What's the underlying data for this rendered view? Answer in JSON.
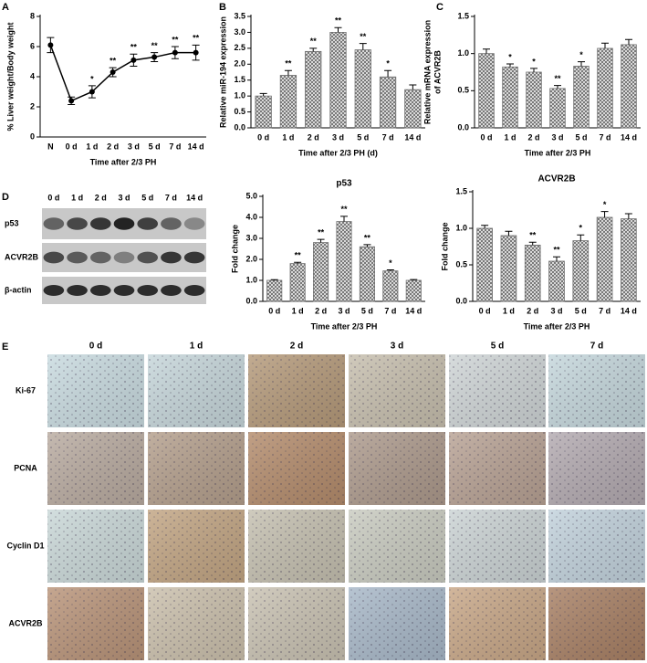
{
  "panel_labels": [
    "A",
    "B",
    "C",
    "D",
    "E"
  ],
  "chart_data": [
    {
      "type": "line",
      "categories": [
        "N",
        "0 d",
        "1 d",
        "2 d",
        "3 d",
        "5 d",
        "7 d",
        "14 d"
      ],
      "values": [
        6.1,
        2.4,
        3.0,
        4.3,
        5.1,
        5.3,
        5.6,
        5.6
      ],
      "errors": [
        0.5,
        0.25,
        0.4,
        0.3,
        0.4,
        0.3,
        0.4,
        0.5
      ],
      "significance": [
        null,
        null,
        "*",
        "**",
        "**",
        "**",
        "**",
        "**"
      ],
      "color": "#000000",
      "ylabel": [
        "% Liver weight/Body weight"
      ],
      "xlabel": "Time after 2/3 PH",
      "ylim": [
        0,
        8
      ],
      "yticks": [
        0,
        2,
        4,
        6,
        8
      ]
    },
    {
      "type": "bar",
      "categories": [
        "0 d",
        "1 d",
        "2 d",
        "3 d",
        "5 d",
        "7 d",
        "14 d"
      ],
      "values": [
        1.0,
        1.65,
        2.4,
        3.0,
        2.45,
        1.6,
        1.2
      ],
      "errors": [
        0.08,
        0.15,
        0.1,
        0.15,
        0.2,
        0.2,
        0.15
      ],
      "significance": [
        null,
        "**",
        "**",
        "**",
        "**",
        "*",
        null
      ],
      "color": "#6e6e6e",
      "ylabel": [
        "Relative miR-194 expression"
      ],
      "xlabel": "Time after 2/3 PH (d)",
      "ylim": [
        0,
        3.5
      ],
      "yticks": [
        {
          "value": 0,
          "label": "0.0"
        },
        {
          "value": 0.5,
          "label": "0.5"
        },
        {
          "value": 1,
          "label": "1.0"
        },
        {
          "value": 1.5,
          "label": "1.5"
        },
        {
          "value": 2,
          "label": "2.0"
        },
        {
          "value": 2.5,
          "label": "2.5"
        },
        {
          "value": 3,
          "label": "3.0"
        },
        {
          "value": 3.5,
          "label": "3.5"
        }
      ]
    },
    {
      "type": "bar",
      "categories": [
        "0 d",
        "1 d",
        "2 d",
        "3 d",
        "5 d",
        "7 d",
        "14 d"
      ],
      "values": [
        1.0,
        0.82,
        0.75,
        0.53,
        0.83,
        1.07,
        1.12
      ],
      "errors": [
        0.06,
        0.04,
        0.05,
        0.04,
        0.06,
        0.07,
        0.07
      ],
      "significance": [
        null,
        "*",
        "*",
        "**",
        "*",
        null,
        null
      ],
      "color": "#6e6e6e",
      "ylabel": [
        "Relative mRNA expression",
        "of ACVR2B"
      ],
      "xlabel": "Time after 2/3 PH",
      "ylim": [
        0,
        1.5
      ],
      "yticks": [
        {
          "value": 0,
          "label": "0.0"
        },
        {
          "value": 0.5,
          "label": "0.5"
        },
        {
          "value": 1,
          "label": "1.0"
        },
        {
          "value": 1.5,
          "label": "1.5"
        }
      ]
    },
    {
      "type": "bar",
      "title": "p53",
      "categories": [
        "0 d",
        "1 d",
        "2 d",
        "3 d",
        "5 d",
        "7 d",
        "14 d"
      ],
      "values": [
        1.0,
        1.8,
        2.8,
        3.8,
        2.6,
        1.45,
        1.0
      ],
      "errors": [
        0.03,
        0.06,
        0.15,
        0.25,
        0.1,
        0.05,
        0.04
      ],
      "significance": [
        null,
        "**",
        "**",
        "**",
        "**",
        "*",
        null
      ],
      "color": "#6e6e6e",
      "ylabel": [
        "Fold change"
      ],
      "xlabel": "Time after 2/3 PH",
      "ylim": [
        0,
        5
      ],
      "yticks": [
        {
          "value": 0,
          "label": "0.0"
        },
        {
          "value": 1,
          "label": "1.0"
        },
        {
          "value": 2,
          "label": "2.0"
        },
        {
          "value": 3,
          "label": "3.0"
        },
        {
          "value": 4,
          "label": "4.0"
        },
        {
          "value": 5,
          "label": "5.0"
        }
      ]
    },
    {
      "type": "bar",
      "title": "ACVR2B",
      "categories": [
        "0 d",
        "1 d",
        "2 d",
        "3 d",
        "5 d",
        "7 d",
        "14 d"
      ],
      "values": [
        1.0,
        0.9,
        0.77,
        0.55,
        0.83,
        1.15,
        1.13
      ],
      "errors": [
        0.04,
        0.06,
        0.04,
        0.06,
        0.08,
        0.08,
        0.07
      ],
      "significance": [
        null,
        null,
        "**",
        "**",
        "*",
        "*",
        null
      ],
      "color": "#6e6e6e",
      "ylabel": [
        "Fold change"
      ],
      "xlabel": "Time after 2/3 PH",
      "ylim": [
        0,
        1.5
      ],
      "yticks": [
        {
          "value": 0,
          "label": "0.0"
        },
        {
          "value": 0.5,
          "label": "0.5"
        },
        {
          "value": 1,
          "label": "1.0"
        },
        {
          "value": 1.5,
          "label": "1.5"
        }
      ]
    }
  ],
  "blot": {
    "lanes": [
      "0 d",
      "1 d",
      "2 d",
      "3 d",
      "5 d",
      "7 d",
      "14 d"
    ],
    "rows": [
      "p53",
      "ACVR2B",
      "β-actin"
    ]
  },
  "ihc": {
    "columns": [
      "0 d",
      "1 d",
      "2 d",
      "3 d",
      "5 d",
      "7 d"
    ],
    "rows": [
      "Ki-67",
      "PCNA",
      "Cyclin D1",
      "ACVR2B"
    ]
  }
}
